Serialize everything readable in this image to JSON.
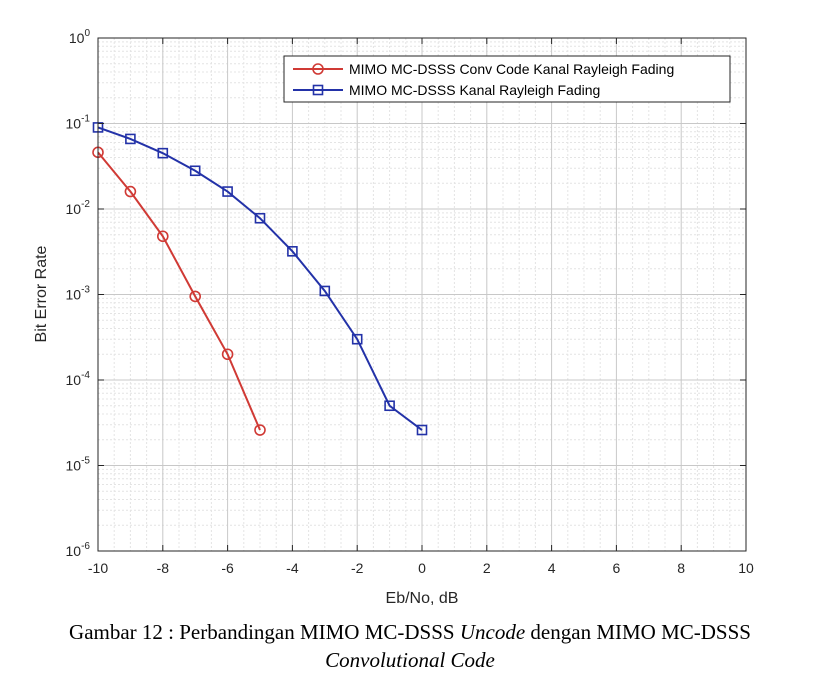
{
  "chart_data": {
    "type": "line",
    "xlabel": "Eb/No, dB",
    "ylabel": "Bit Error Rate",
    "xlim": [
      -10,
      10
    ],
    "ylim": [
      1e-06,
      1
    ],
    "yscale": "log",
    "grid": true,
    "x_ticks": [
      "-10",
      "-8",
      "-6",
      "-4",
      "-2",
      "0",
      "2",
      "4",
      "6",
      "8",
      "10"
    ],
    "y_ticks": [
      {
        "base": "10",
        "exp": "0"
      },
      {
        "base": "10",
        "exp": "-1"
      },
      {
        "base": "10",
        "exp": "-2"
      },
      {
        "base": "10",
        "exp": "-3"
      },
      {
        "base": "10",
        "exp": "-4"
      },
      {
        "base": "10",
        "exp": "-5"
      },
      {
        "base": "10",
        "exp": "-6"
      }
    ],
    "legend_position": "top-right",
    "series": [
      {
        "name": "MIMO MC-DSSS Conv Code Kanal Rayleigh Fading",
        "color": "#d03a35",
        "marker": "circle",
        "x": [
          -10,
          -9,
          -8,
          -7,
          -6,
          -5
        ],
        "values": [
          0.046,
          0.016,
          0.0048,
          0.00095,
          0.0002,
          2.6e-05
        ]
      },
      {
        "name": "MIMO MC-DSSS Kanal Rayleigh Fading",
        "color": "#2332a8",
        "marker": "square",
        "x": [
          -10,
          -9,
          -8,
          -7,
          -6,
          -5,
          -4,
          -3,
          -2,
          -1,
          0
        ],
        "values": [
          0.09,
          0.066,
          0.045,
          0.028,
          0.016,
          0.0078,
          0.0032,
          0.0011,
          0.0003,
          5e-05,
          2.6e-05
        ]
      }
    ]
  },
  "caption": {
    "prefix": "Gambar 12 : Perbandingan MIMO MC-DSSS ",
    "italic1": "Uncode",
    "middle": " dengan MIMO MC-DSSS ",
    "italic2": "Convolutional Code"
  }
}
